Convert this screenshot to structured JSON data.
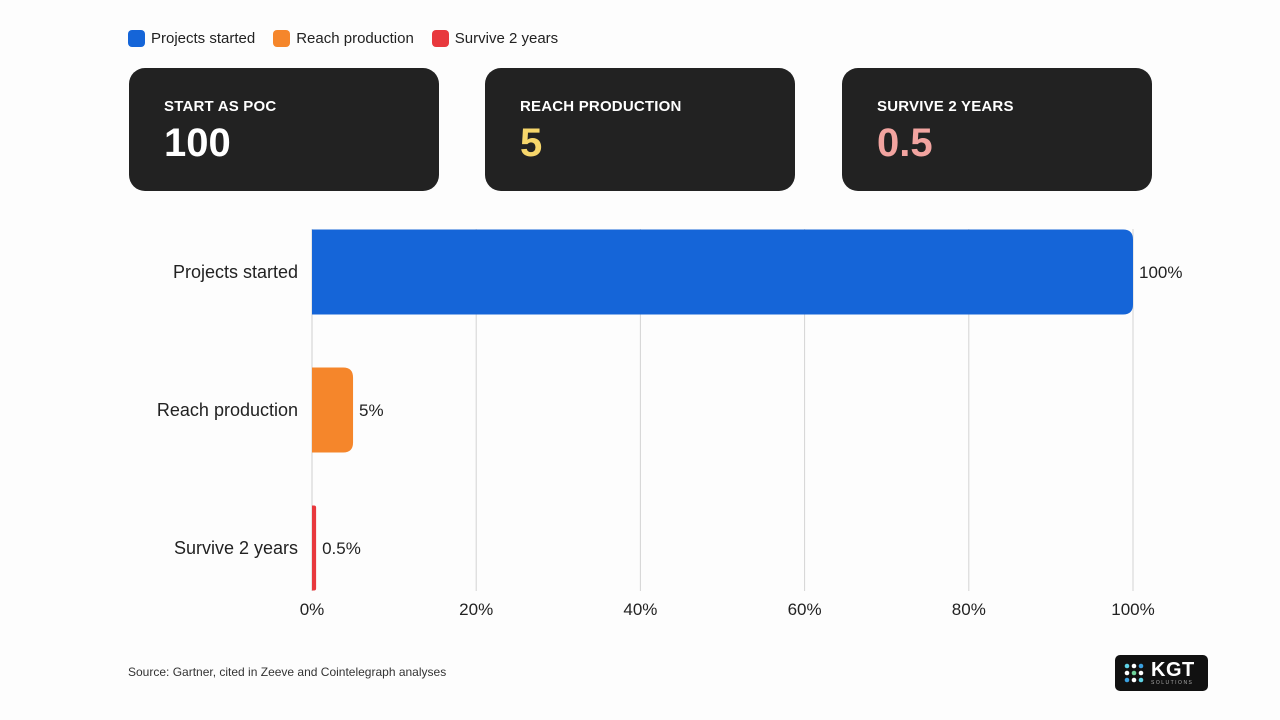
{
  "legend": [
    {
      "label": "Projects started",
      "color": "#1565d8"
    },
    {
      "label": "Reach production",
      "color": "#f5862b"
    },
    {
      "label": "Survive 2 years",
      "color": "#e8383d"
    }
  ],
  "cards": [
    {
      "label": "START AS POC",
      "value": "100",
      "color": "#ffffff"
    },
    {
      "label": "REACH PRODUCTION",
      "value": "5",
      "color": "#f6d66b"
    },
    {
      "label": "SURVIVE 2 YEARS",
      "value": "0.5",
      "color": "#f2a4a0"
    }
  ],
  "chart_data": {
    "type": "bar",
    "orientation": "horizontal",
    "categories": [
      "Projects started",
      "Reach production",
      "Survive 2 years"
    ],
    "values": [
      100,
      5,
      0.5
    ],
    "value_labels": [
      "100%",
      "5%",
      "0.5%"
    ],
    "colors": [
      "#1565d8",
      "#f5862b",
      "#e8383d"
    ],
    "xlim": [
      0,
      100
    ],
    "xticks": [
      0,
      20,
      40,
      60,
      80,
      100
    ],
    "xtick_labels": [
      "0%",
      "20%",
      "40%",
      "60%",
      "80%",
      "100%"
    ],
    "grid": true,
    "legend_position": "top-left"
  },
  "source": "Source: Gartner, cited in Zeeve and Cointelegraph analyses",
  "logo": {
    "main": "KGT",
    "sub": "SOLUTIONS"
  }
}
